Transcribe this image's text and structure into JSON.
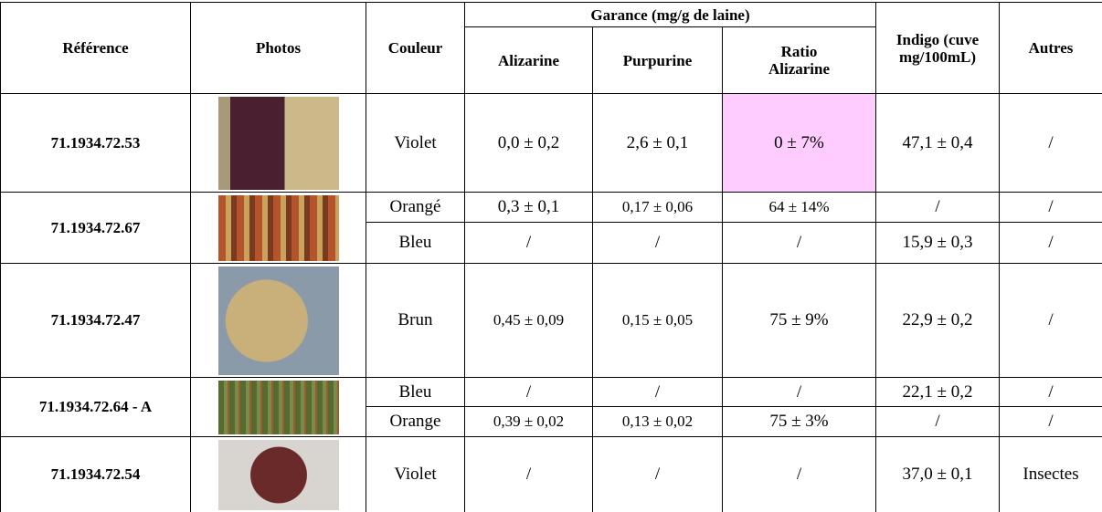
{
  "header": {
    "reference": "Référence",
    "photos": "Photos",
    "couleur": "Couleur",
    "garance": "Garance (mg/g de laine)",
    "alizarine": "Alizarine",
    "purpurine": "Purpurine",
    "ratio": "Ratio Alizarine",
    "indigo": "Indigo (cuve mg/100mL)",
    "autres": "Autres"
  },
  "rows": [
    {
      "reference": "71.1934.72.53",
      "dyes": [
        [
          "Violet",
          "0,0 ± 0,2",
          "2,6 ± 0,1",
          "0 ± 7%",
          "47,1 ± 0,4",
          "/"
        ]
      ]
    },
    {
      "reference": "71.1934.72.67",
      "dyes": [
        [
          "Orangé",
          "0,3 ± 0,1",
          "0,17 ± 0,06",
          "64 ± 14%",
          "/",
          "/"
        ],
        [
          "Bleu",
          "/",
          "/",
          "/",
          "15,9 ± 0,3",
          "/"
        ]
      ]
    },
    {
      "reference": "71.1934.72.47",
      "dyes": [
        [
          "Brun",
          "0,45 ± 0,09",
          "0,15 ± 0,05",
          "75 ± 9%",
          "22,9 ± 0,2",
          "/"
        ]
      ]
    },
    {
      "reference": "71.1934.72.64 - A",
      "dyes": [
        [
          "Bleu",
          "/",
          "/",
          "/",
          "22,1 ± 0,2",
          "/"
        ],
        [
          "Orange",
          "0,39 ± 0,02",
          "0,13 ± 0,02",
          "75 ± 3%",
          "/",
          "/"
        ]
      ]
    },
    {
      "reference": "71.1934.72.54",
      "dyes": [
        [
          "Violet",
          "/",
          "/",
          "/",
          "37,0 ± 0,1",
          "Insectes"
        ]
      ]
    }
  ]
}
